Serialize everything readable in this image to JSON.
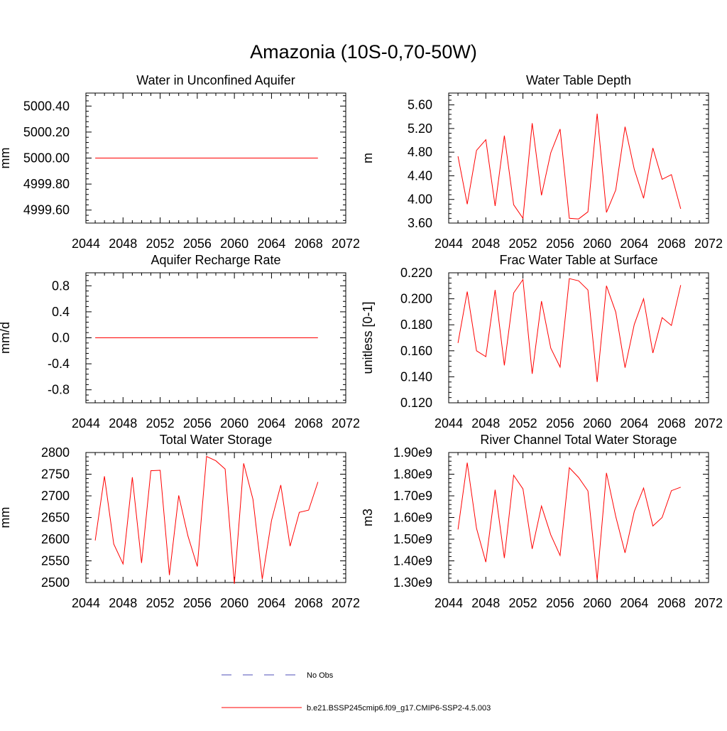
{
  "figure": {
    "title": "Amazonia (10S-0,70-50W)"
  },
  "legend": {
    "entries": [
      {
        "label": "No Obs",
        "color": "#4f4fb8",
        "style": "dashed"
      },
      {
        "label": "b.e21.BSSP245cmip6.f09_g17.CMIP6-SSP2-4.5.003",
        "color": "#ff0000",
        "style": "solid"
      }
    ]
  },
  "chart_data": [
    {
      "type": "line",
      "title": "Water in Unconfined Aquifer",
      "ylabel": "mm",
      "xlim": [
        2044,
        2072
      ],
      "xticks": [
        2044,
        2048,
        2052,
        2056,
        2060,
        2064,
        2068,
        2072
      ],
      "ylim": [
        4999.5,
        5000.5
      ],
      "yticks": [
        4999.6,
        4999.8,
        5000.0,
        5000.2,
        5000.4
      ],
      "ytick_labels": [
        "4999.60",
        "4999.80",
        "5000.00",
        "5000.20",
        "5000.40"
      ],
      "x": [
        2045,
        2046,
        2047,
        2048,
        2049,
        2050,
        2051,
        2052,
        2053,
        2054,
        2055,
        2056,
        2057,
        2058,
        2059,
        2060,
        2061,
        2062,
        2063,
        2064,
        2065,
        2066,
        2067,
        2068,
        2069
      ],
      "series": [
        {
          "color": "#ff0000",
          "values": [
            5000,
            5000,
            5000,
            5000,
            5000,
            5000,
            5000,
            5000,
            5000,
            5000,
            5000,
            5000,
            5000,
            5000,
            5000,
            5000,
            5000,
            5000,
            5000,
            5000,
            5000,
            5000,
            5000,
            5000,
            5000
          ]
        }
      ]
    },
    {
      "type": "line",
      "title": "Water Table Depth",
      "ylabel": "m",
      "xlim": [
        2044,
        2072
      ],
      "xticks": [
        2044,
        2048,
        2052,
        2056,
        2060,
        2064,
        2068,
        2072
      ],
      "ylim": [
        3.6,
        5.8
      ],
      "yticks": [
        3.6,
        4.0,
        4.4,
        4.8,
        5.2,
        5.6
      ],
      "ytick_labels": [
        "3.60",
        "4.00",
        "4.40",
        "4.80",
        "5.20",
        "5.60"
      ],
      "x": [
        2045,
        2046,
        2047,
        2048,
        2049,
        2050,
        2051,
        2052,
        2053,
        2054,
        2055,
        2056,
        2057,
        2058,
        2059,
        2060,
        2061,
        2062,
        2063,
        2064,
        2065,
        2066,
        2067,
        2068,
        2069
      ],
      "series": [
        {
          "color": "#ff0000",
          "values": [
            4.73,
            3.92,
            4.83,
            5.01,
            3.89,
            5.08,
            3.91,
            3.68,
            5.29,
            4.07,
            4.79,
            5.19,
            3.68,
            3.67,
            3.79,
            5.45,
            3.78,
            4.16,
            5.23,
            4.51,
            4.02,
            4.87,
            4.34,
            4.42,
            3.84
          ]
        }
      ]
    },
    {
      "type": "line",
      "title": "Aquifer Recharge Rate",
      "ylabel": "mm/d",
      "xlim": [
        2044,
        2072
      ],
      "xticks": [
        2044,
        2048,
        2052,
        2056,
        2060,
        2064,
        2068,
        2072
      ],
      "ylim": [
        -1.0,
        1.0
      ],
      "yticks": [
        -0.8,
        -0.4,
        0.0,
        0.4,
        0.8
      ],
      "ytick_labels": [
        "-0.8",
        "-0.4",
        "0.0",
        "0.4",
        "0.8"
      ],
      "x": [
        2045,
        2046,
        2047,
        2048,
        2049,
        2050,
        2051,
        2052,
        2053,
        2054,
        2055,
        2056,
        2057,
        2058,
        2059,
        2060,
        2061,
        2062,
        2063,
        2064,
        2065,
        2066,
        2067,
        2068,
        2069
      ],
      "series": [
        {
          "color": "#ff0000",
          "values": [
            0,
            0,
            0,
            0,
            0,
            0,
            0,
            0,
            0,
            0,
            0,
            0,
            0,
            0,
            0,
            0,
            0,
            0,
            0,
            0,
            0,
            0,
            0,
            0,
            0
          ]
        }
      ]
    },
    {
      "type": "line",
      "title": "Frac Water Table at Surface",
      "ylabel": "unitless [0-1]",
      "xlim": [
        2044,
        2072
      ],
      "xticks": [
        2044,
        2048,
        2052,
        2056,
        2060,
        2064,
        2068,
        2072
      ],
      "ylim": [
        0.12,
        0.22
      ],
      "yticks": [
        0.12,
        0.14,
        0.16,
        0.18,
        0.2,
        0.22
      ],
      "ytick_labels": [
        "0.120",
        "0.140",
        "0.160",
        "0.180",
        "0.200",
        "0.220"
      ],
      "x": [
        2045,
        2046,
        2047,
        2048,
        2049,
        2050,
        2051,
        2052,
        2053,
        2054,
        2055,
        2056,
        2057,
        2058,
        2059,
        2060,
        2061,
        2062,
        2063,
        2064,
        2065,
        2066,
        2067,
        2068,
        2069
      ],
      "series": [
        {
          "color": "#ff0000",
          "values": [
            0.166,
            0.2055,
            0.16,
            0.1555,
            0.2068,
            0.1488,
            0.2045,
            0.2148,
            0.1423,
            0.1982,
            0.162,
            0.1475,
            0.2155,
            0.2138,
            0.2068,
            0.136,
            0.21,
            0.1898,
            0.147,
            0.1803,
            0.2,
            0.1583,
            0.1855,
            0.1795,
            0.2105
          ]
        }
      ]
    },
    {
      "type": "line",
      "title": "Total Water Storage",
      "ylabel": "mm",
      "xlim": [
        2044,
        2072
      ],
      "xticks": [
        2044,
        2048,
        2052,
        2056,
        2060,
        2064,
        2068,
        2072
      ],
      "ylim": [
        2500,
        2800
      ],
      "yticks": [
        2500,
        2550,
        2600,
        2650,
        2700,
        2750,
        2800
      ],
      "ytick_labels": [
        "2500",
        "2550",
        "2600",
        "2650",
        "2700",
        "2750",
        "2800"
      ],
      "x": [
        2045,
        2046,
        2047,
        2048,
        2049,
        2050,
        2051,
        2052,
        2053,
        2054,
        2055,
        2056,
        2057,
        2058,
        2059,
        2060,
        2061,
        2062,
        2063,
        2064,
        2065,
        2066,
        2067,
        2068,
        2069
      ],
      "series": [
        {
          "color": "#ff0000",
          "values": [
            2597,
            2745,
            2589,
            2543,
            2743,
            2545,
            2758,
            2759,
            2517,
            2701,
            2607,
            2537,
            2791,
            2781,
            2762,
            2497,
            2775,
            2692,
            2508,
            2643,
            2725,
            2584,
            2662,
            2667,
            2732
          ]
        }
      ]
    },
    {
      "type": "line",
      "title": "River Channel Total Water Storage",
      "ylabel": "m3",
      "xlim": [
        2044,
        2072
      ],
      "xticks": [
        2044,
        2048,
        2052,
        2056,
        2060,
        2064,
        2068,
        2072
      ],
      "ylim": [
        1300000000.0,
        1900000000.0
      ],
      "yticks": [
        1300000000.0,
        1400000000.0,
        1500000000.0,
        1600000000.0,
        1700000000.0,
        1800000000.0,
        1900000000.0
      ],
      "ytick_labels": [
        "1.30e9",
        "1.40e9",
        "1.50e9",
        "1.60e9",
        "1.70e9",
        "1.80e9",
        "1.90e9"
      ],
      "x": [
        2045,
        2046,
        2047,
        2048,
        2049,
        2050,
        2051,
        2052,
        2053,
        2054,
        2055,
        2056,
        2057,
        2058,
        2059,
        2060,
        2061,
        2062,
        2063,
        2064,
        2065,
        2066,
        2067,
        2068,
        2069
      ],
      "series": [
        {
          "color": "#ff0000",
          "values": [
            1545000000.0,
            1853000000.0,
            1550000000.0,
            1394000000.0,
            1728000000.0,
            1413000000.0,
            1795000000.0,
            1732000000.0,
            1455000000.0,
            1653000000.0,
            1520000000.0,
            1425000000.0,
            1830000000.0,
            1785000000.0,
            1723000000.0,
            1312000000.0,
            1806000000.0,
            1605000000.0,
            1437000000.0,
            1628000000.0,
            1736000000.0,
            1561000000.0,
            1600000000.0,
            1724000000.0,
            1740000000.0
          ]
        }
      ]
    }
  ]
}
